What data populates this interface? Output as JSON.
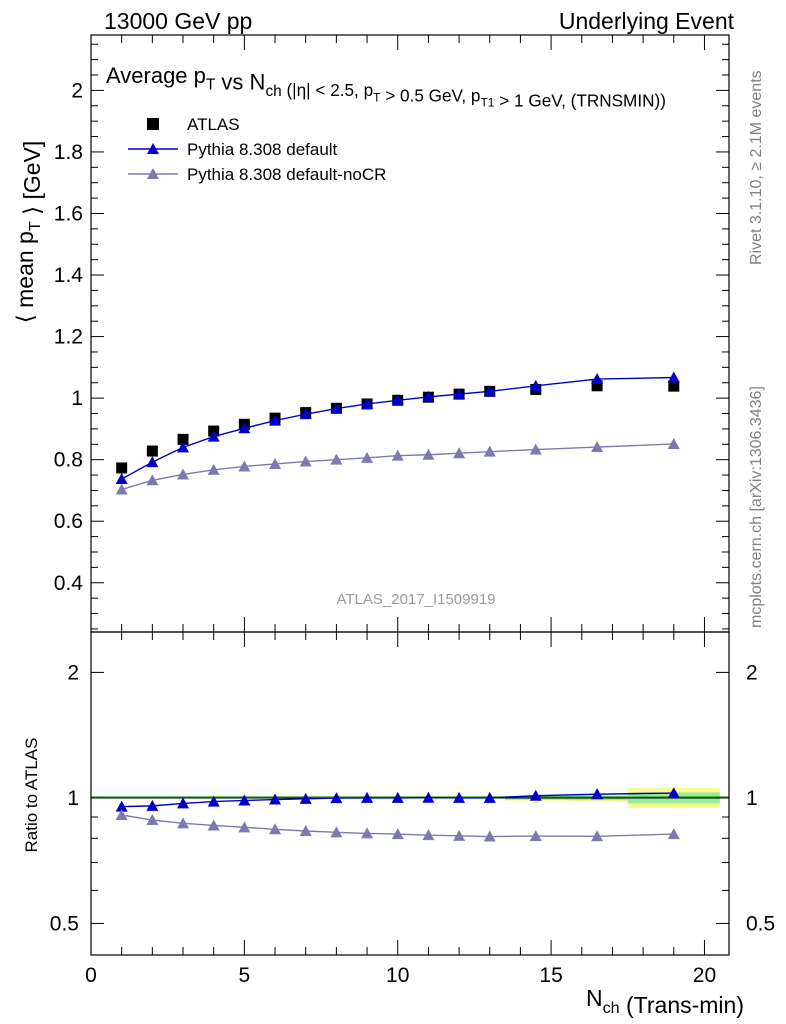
{
  "header": {
    "left": "13000 GeV pp",
    "right": "Underlying Event"
  },
  "title": {
    "parts": [
      {
        "t": "Average p",
        "sub": "T"
      },
      {
        "t": " vs N",
        "sub": "ch"
      },
      {
        "t": " (|η| < 2.5, p",
        "sub": "T",
        "small": true
      },
      {
        "t": " > 0.5 GeV, p",
        "sub": "T1",
        "small": true
      },
      {
        "t": " > 1 GeV, (TRNSMIN))",
        "small": true
      }
    ]
  },
  "ylabel_main": {
    "pre": "⟨ mean p",
    "sub": "T",
    "post": " ⟩ [GeV]"
  },
  "ylabel_ratio": "Ratio to ATLAS",
  "xlabel": {
    "pre": "N",
    "sub": "ch",
    "post": " (Trans-min)"
  },
  "side_right_top": "Rivet 3.1.10, ≥ 2.1M events",
  "side_right_bottom": "mcplots.cern.ch [arXiv:1306.3436]",
  "analysis_tag": "ATLAS_2017_I1509919",
  "legend": [
    {
      "label": "ATLAS",
      "marker": "square",
      "color": "#000000"
    },
    {
      "label": "Pythia 8.308 default",
      "marker": "triangle",
      "color": "#0000cc"
    },
    {
      "label": "Pythia 8.308 default-noCR",
      "marker": "triangle",
      "color": "#7b7bb0"
    }
  ],
  "chart_data": {
    "type": "scatter",
    "x": [
      1,
      2,
      3,
      4,
      5,
      6,
      7,
      8,
      9,
      10,
      11,
      12,
      13,
      14.5,
      16.5,
      19
    ],
    "series": [
      {
        "name": "ATLAS",
        "color": "#000000",
        "values": [
          0.773,
          0.828,
          0.866,
          0.893,
          0.915,
          0.935,
          0.953,
          0.967,
          0.981,
          0.993,
          1.003,
          1.013,
          1.022,
          1.028,
          1.04,
          1.039
        ]
      },
      {
        "name": "Pythia 8.308 default",
        "color": "#0000cc",
        "values": [
          0.737,
          0.792,
          0.84,
          0.875,
          0.902,
          0.927,
          0.948,
          0.966,
          0.981,
          0.993,
          1.004,
          1.013,
          1.022,
          1.04,
          1.062,
          1.067
        ]
      },
      {
        "name": "Pythia 8.308 default-noCR",
        "color": "#7b7bb0",
        "values": [
          0.703,
          0.733,
          0.752,
          0.767,
          0.778,
          0.786,
          0.794,
          0.8,
          0.806,
          0.813,
          0.816,
          0.821,
          0.826,
          0.833,
          0.841,
          0.851
        ]
      }
    ],
    "ratio": {
      "series": [
        {
          "name": "Pythia 8.308 default",
          "values": [
            0.953,
            0.957,
            0.97,
            0.98,
            0.986,
            0.991,
            0.995,
            0.999,
            1.0,
            1.0,
            1.001,
            1.0,
            1.0,
            1.012,
            1.021,
            1.027
          ]
        },
        {
          "name": "Pythia 8.308 default-noCR",
          "values": [
            0.91,
            0.885,
            0.869,
            0.859,
            0.85,
            0.841,
            0.833,
            0.827,
            0.822,
            0.819,
            0.814,
            0.811,
            0.808,
            0.81,
            0.809,
            0.819
          ]
        }
      ],
      "bands": [
        {
          "x0": 13.5,
          "x1": 15.5,
          "inner": 0.01,
          "outer": 0.015
        },
        {
          "x0": 15.5,
          "x1": 17.5,
          "inner": 0.012,
          "outer": 0.02
        },
        {
          "x0": 17.5,
          "x1": 20.5,
          "inner": 0.03,
          "outer": 0.055
        }
      ],
      "band_colors": {
        "inner": "#97ec97",
        "outer": "#fbfb8e"
      },
      "ylim": [
        0.42,
        2.5
      ],
      "yticks": [
        0.5,
        1,
        2
      ],
      "yticklabels": [
        "0.5",
        "1",
        "2"
      ]
    },
    "xlim": [
      0,
      20.8
    ],
    "xticks": [
      0,
      5,
      10,
      15,
      20
    ],
    "xticklabels": [
      "0",
      "5",
      "10",
      "15",
      "20"
    ],
    "ylim": [
      0.24,
      2.18
    ],
    "yticks": [
      0.4,
      0.6,
      0.8,
      1.0,
      1.2,
      1.4,
      1.6,
      1.8,
      2.0
    ],
    "yticklabels": [
      "0.4",
      "0.6",
      "0.8",
      "1",
      "1.2",
      "1.4",
      "1.6",
      "1.8",
      "2"
    ]
  }
}
